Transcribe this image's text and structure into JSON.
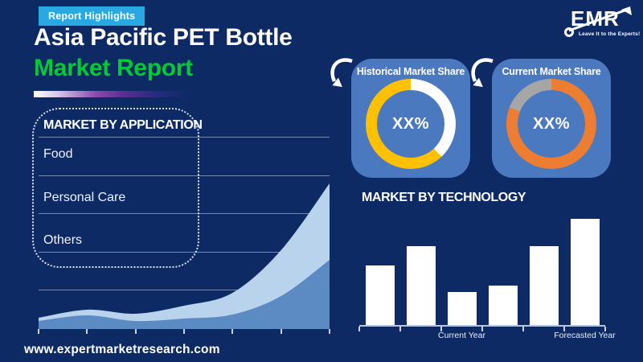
{
  "colors": {
    "background": "#0D2A65",
    "badge": "#29A9E1",
    "title_green": "#00CB33",
    "panel_blue": "#4B79C0",
    "bar_white": "#FFFFFF",
    "donut_yellow": "#FFC000",
    "donut_orange": "#ED7D31",
    "donut_gray": "#A6A6A6",
    "area_light": "#B9D3EC",
    "area_dark": "#5C8BC4"
  },
  "header": {
    "badge_label": "Report Highlights",
    "title_line1": "Asia Pacific PET Bottle",
    "title_line2": "Market Report"
  },
  "logo": {
    "name": "EMR",
    "tagline": "Leave It to the Experts!"
  },
  "application_section": {
    "title": "MARKET BY APPLICATION",
    "items": [
      "Food",
      "Personal Care",
      "Others"
    ]
  },
  "chart_data": [
    {
      "type": "area",
      "id": "application-trend",
      "title": "",
      "xlabel": "",
      "ylabel": "",
      "x": [
        0,
        1,
        2,
        3,
        4,
        5,
        6
      ],
      "x_tick_labels": [
        "",
        "",
        "",
        "",
        "",
        "",
        ""
      ],
      "grid": true,
      "ylim": [
        0,
        249
      ],
      "value_scale": "relative-unlabeled-axes",
      "series": [
        {
          "name": "area-upper",
          "color": "#B9D3EC",
          "values": [
            14,
            24,
            19,
            29,
            45,
            98,
            181
          ]
        },
        {
          "name": "area-lower",
          "color": "#5C8BC4",
          "values": [
            10,
            17,
            10,
            13,
            18,
            41,
            86
          ]
        }
      ]
    },
    {
      "type": "pie",
      "id": "historical-share-donut",
      "title": "Historical Market Share",
      "center_label": "XX%",
      "donut": true,
      "slices": [
        {
          "label": "remainder",
          "value": 38,
          "color": "#FFFFFF"
        },
        {
          "label": "market-share",
          "value": 62,
          "color": "#FFC000"
        }
      ]
    },
    {
      "type": "pie",
      "id": "current-share-donut",
      "title": "Current Market Share",
      "center_label": "XX%",
      "donut": true,
      "slices": [
        {
          "label": "market-share",
          "value": 81,
          "color": "#ED7D31"
        },
        {
          "label": "remainder",
          "value": 19,
          "color": "#A6A6A6"
        }
      ]
    },
    {
      "type": "bar",
      "id": "technology-bars",
      "title": "MARKET BY TECHNOLOGY",
      "xlabel": "",
      "ylabel": "",
      "grid": false,
      "ylim": [
        0,
        136
      ],
      "value_scale": "relative-unlabeled-axes",
      "bar_color": "#FFFFFF",
      "categories": [
        "",
        "",
        "Current Year",
        "",
        "",
        "Forecasted Year"
      ],
      "values": [
        74,
        98,
        41,
        49,
        98,
        132
      ]
    }
  ],
  "footer": {
    "url": "www.expertmarketresearch.com"
  }
}
